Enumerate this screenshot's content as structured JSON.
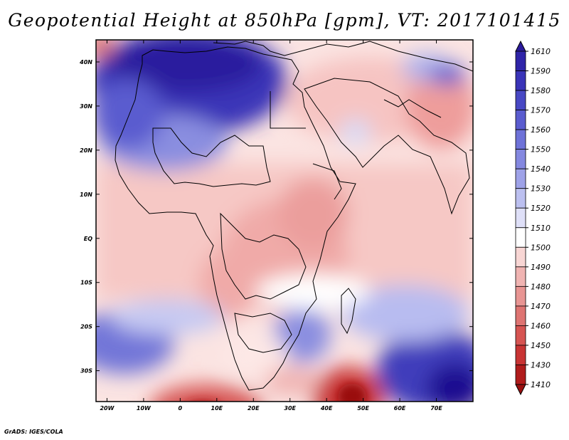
{
  "title": "Geopotential Height at 850hPa [gpm], VT: 2017101415",
  "credit": "GrADS: IGES/COLA",
  "chart_data": {
    "type": "heatmap",
    "variable": "Geopotential Height at 850hPa",
    "units": "gpm",
    "valid_time": "2017101415",
    "lon_range": [
      -23,
      80
    ],
    "lat_range": [
      -37,
      45
    ],
    "x_ticks": [
      "20W",
      "10W",
      "0",
      "10E",
      "20E",
      "30E",
      "40E",
      "50E",
      "60E",
      "70E"
    ],
    "x_tick_values": [
      -20,
      -10,
      0,
      10,
      20,
      30,
      40,
      50,
      60,
      70
    ],
    "y_ticks": [
      "40N",
      "30N",
      "20N",
      "10N",
      "EQ",
      "10S",
      "20S",
      "30S"
    ],
    "y_tick_values": [
      40,
      30,
      20,
      10,
      0,
      -10,
      -20,
      -30
    ],
    "colorbar": {
      "labels": [
        "1610",
        "1590",
        "1580",
        "1570",
        "1560",
        "1550",
        "1540",
        "1530",
        "1520",
        "1510",
        "1500",
        "1490",
        "1480",
        "1470",
        "1460",
        "1450",
        "1430",
        "1410"
      ],
      "colors": [
        "#2a1a9b",
        "#2f24a8",
        "#3a34b8",
        "#4848c4",
        "#5a5ccf",
        "#6e72d8",
        "#8488e0",
        "#9ea2e8",
        "#bcc0f0",
        "#dfe0f8",
        "#ffffff",
        "#f8d6d4",
        "#f0b4b2",
        "#e89593",
        "#de7472",
        "#d65452",
        "#c83434",
        "#b01c1c",
        "#9a1010"
      ]
    }
  }
}
